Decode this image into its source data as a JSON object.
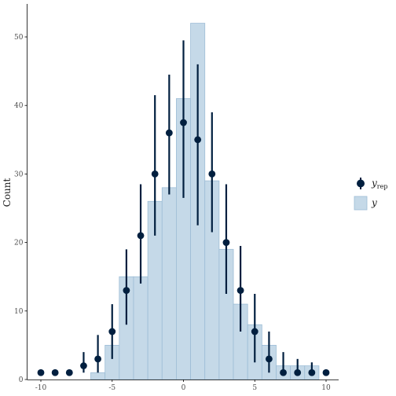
{
  "chart_data": {
    "type": "bar",
    "ylabel": "Count",
    "xlabel": "",
    "xlim": [
      -10.5,
      10.5
    ],
    "ylim": [
      0,
      53
    ],
    "x_ticks": [
      -10,
      -5,
      0,
      5,
      10
    ],
    "x_tick_labels": [
      "-10",
      "-5",
      "0",
      "5",
      "10"
    ],
    "y_ticks": [
      0,
      10,
      20,
      30,
      40,
      50
    ],
    "y_tick_labels": [
      "0",
      "10",
      "20",
      "30",
      "40",
      "50"
    ],
    "grid": false,
    "legend_position": "right",
    "colors": {
      "bar_fill": "#c5d9e8",
      "bar_stroke": "#9dbdd6",
      "point": "#011f3f",
      "axis": "#000000"
    },
    "y_series": {
      "name": "y",
      "x": [
        -6,
        -5,
        -4,
        -3,
        -2,
        -1,
        0,
        1,
        2,
        3,
        4,
        5,
        6,
        7,
        8,
        9
      ],
      "values": [
        1,
        5,
        15,
        15,
        26,
        28,
        41,
        52,
        29,
        19,
        11,
        8,
        5,
        2,
        2,
        2
      ]
    },
    "yrep_series": {
      "name": "y",
      "name_sub": "rep",
      "x": [
        -10,
        -9,
        -8,
        -7,
        -6,
        -5,
        -4,
        -3,
        -2,
        -1,
        0,
        1,
        2,
        3,
        4,
        5,
        6,
        7,
        8,
        9,
        10
      ],
      "median": [
        1,
        1,
        1,
        2,
        3,
        7,
        13,
        21,
        30,
        36,
        37.5,
        35,
        30,
        20,
        13,
        7,
        3,
        1,
        1,
        1,
        1
      ],
      "lower": [
        1,
        1,
        1,
        1,
        1,
        3,
        8,
        14,
        21,
        27,
        26.5,
        22.5,
        21.5,
        12.5,
        7,
        2.5,
        1,
        1,
        1,
        1,
        1
      ],
      "upper": [
        1,
        1,
        1,
        4,
        6.5,
        11,
        19,
        28.5,
        41.5,
        44.5,
        49.5,
        46,
        39,
        28.5,
        19.5,
        12.5,
        7,
        4,
        3,
        2.5,
        1
      ]
    }
  }
}
